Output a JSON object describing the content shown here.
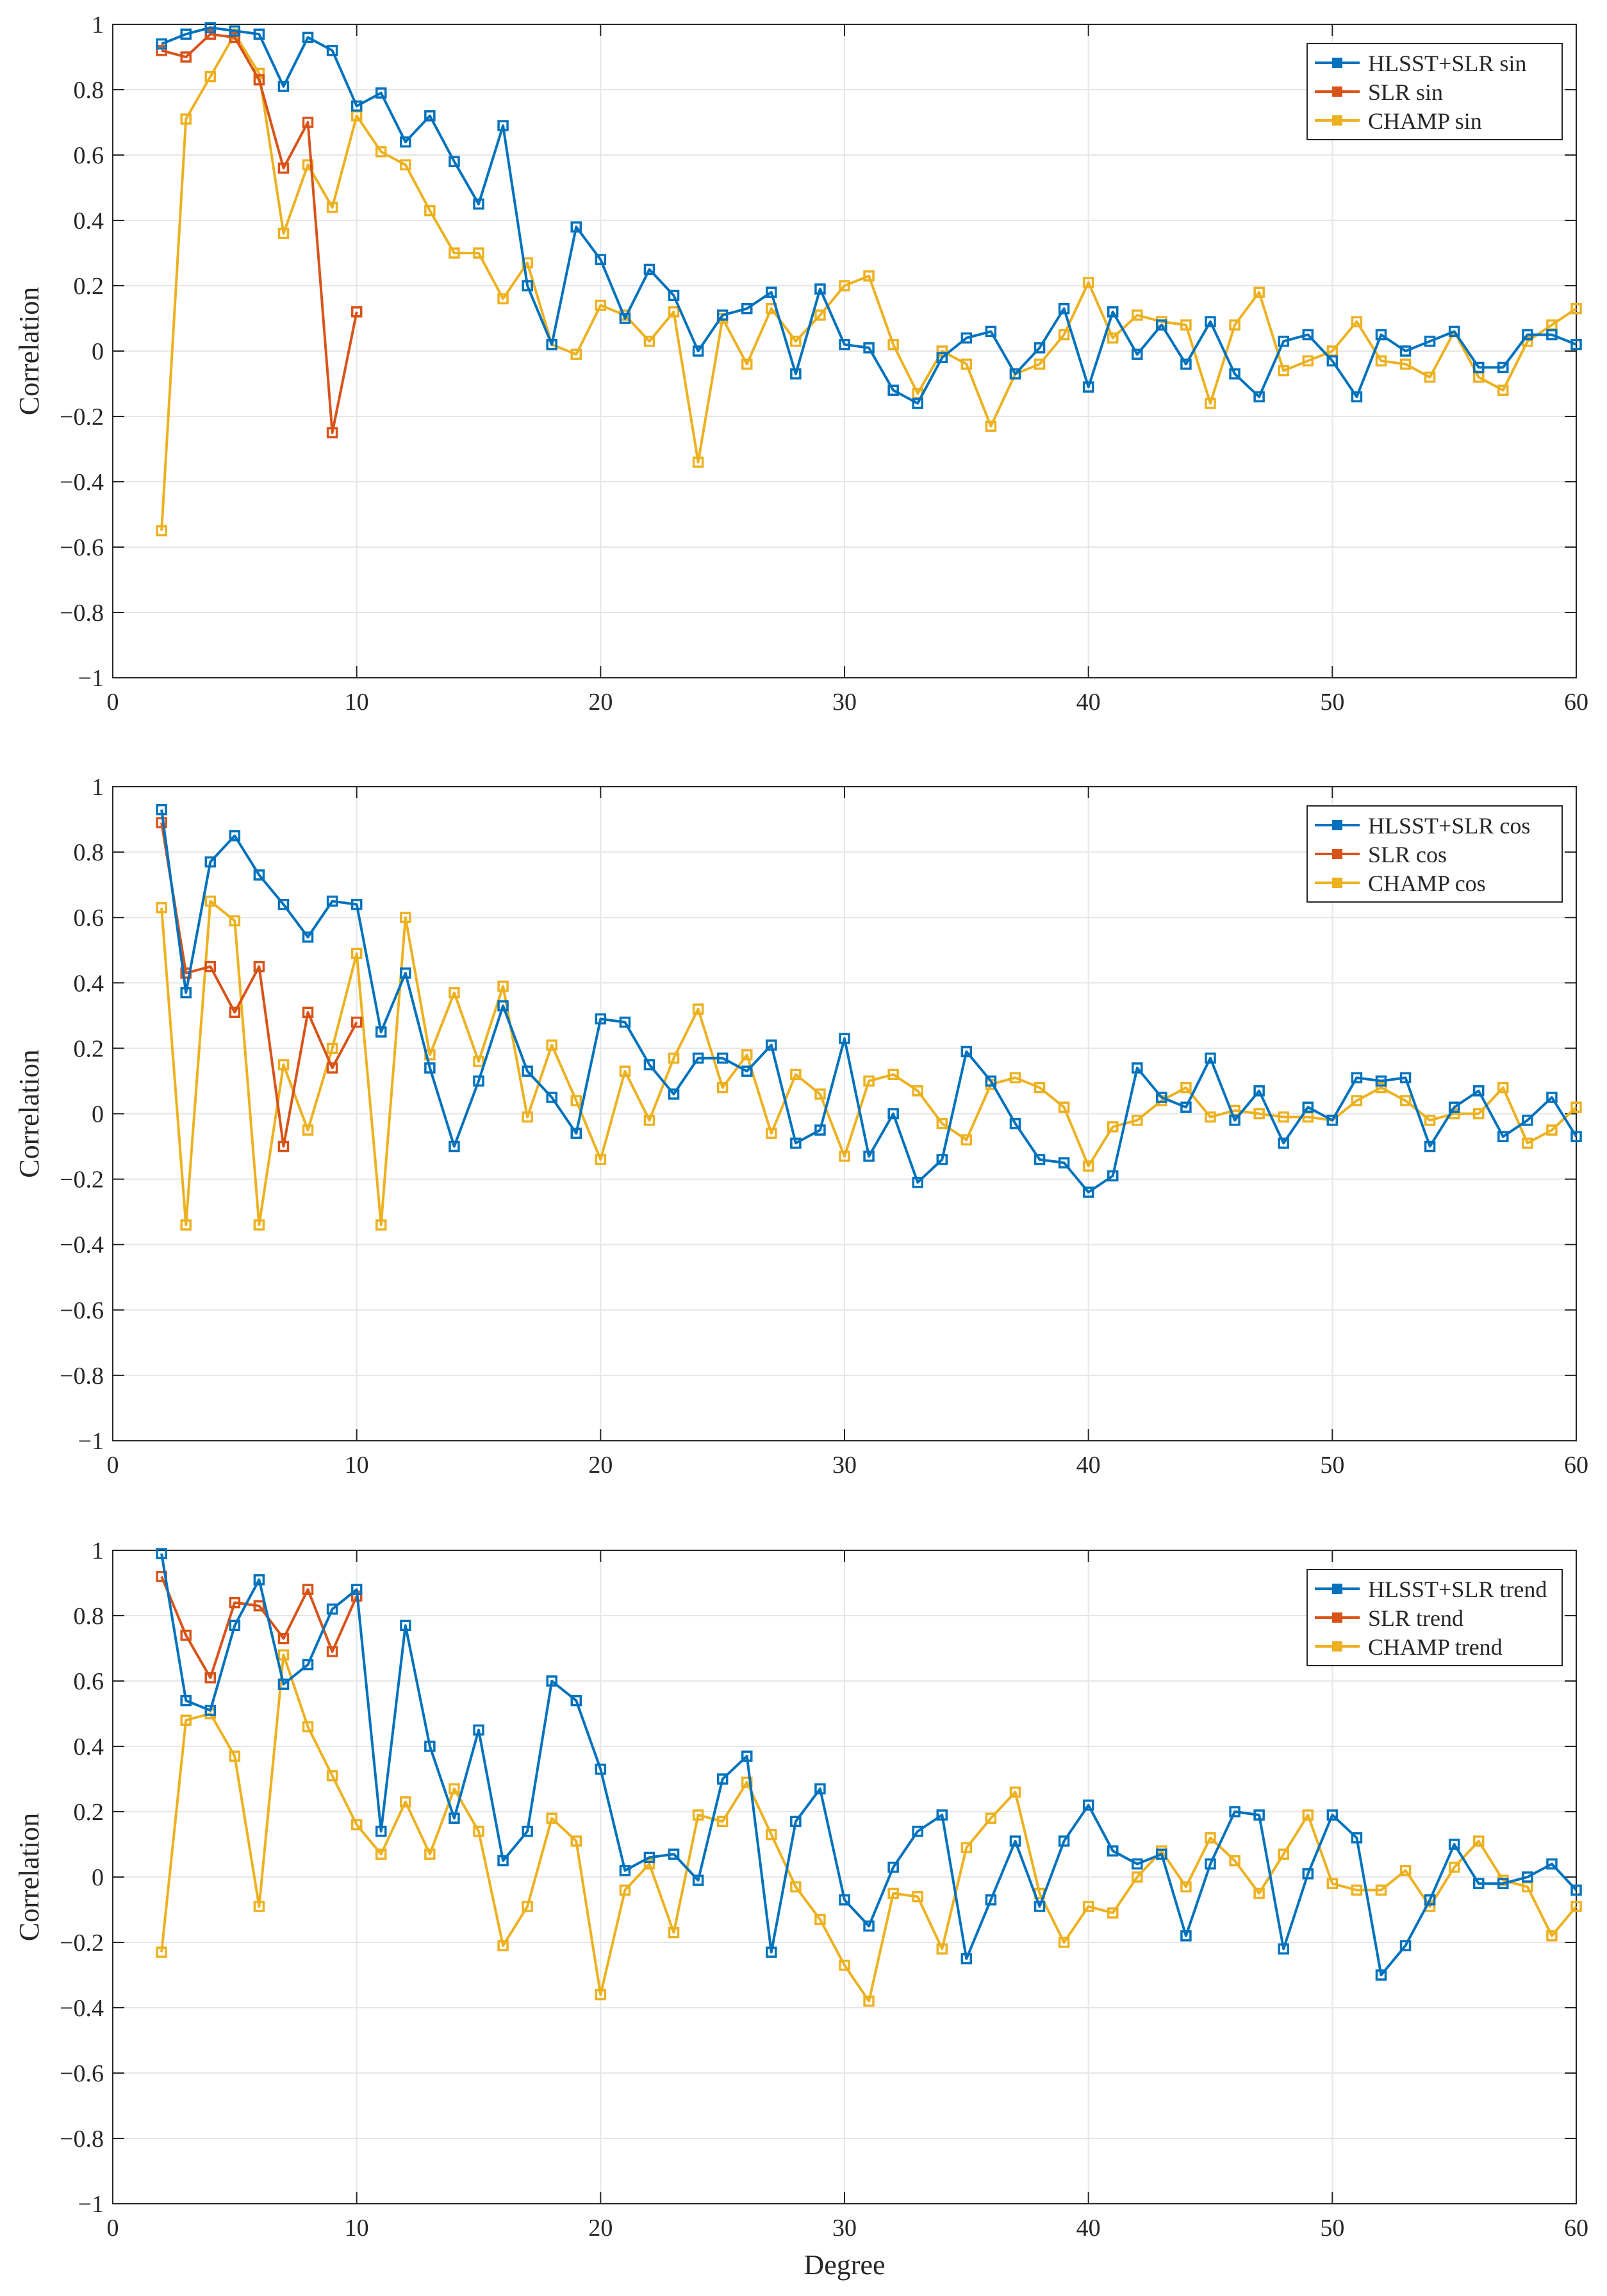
{
  "chart_data": [
    {
      "type": "line",
      "title": "",
      "xlabel": "",
      "ylabel": "Correlation",
      "xlim": [
        0,
        60
      ],
      "ylim": [
        -1,
        1
      ],
      "xticks": [
        0,
        10,
        20,
        30,
        40,
        50,
        60
      ],
      "yticks": [
        1,
        0.8,
        0.6,
        0.4,
        0.2,
        0,
        -0.2,
        -0.4,
        -0.6,
        -0.8,
        -1
      ],
      "ytick_labels": [
        "1",
        "0.8",
        "0.6",
        "0.4",
        "0.2",
        "0",
        "−0.2",
        "−0.4",
        "−0.6",
        "−0.8",
        "−1"
      ],
      "grid": true,
      "legend_position": "top-right",
      "series": [
        {
          "name": "HLSST+SLR sin",
          "color": "#0072BD",
          "x_start": 2,
          "values": [
            0.94,
            0.97,
            0.99,
            0.98,
            0.97,
            0.81,
            0.96,
            0.92,
            0.75,
            0.79,
            0.64,
            0.72,
            0.58,
            0.45,
            0.69,
            0.2,
            0.02,
            0.38,
            0.28,
            0.1,
            0.25,
            0.17,
            0.0,
            0.11,
            0.13,
            0.18,
            -0.07,
            0.19,
            0.02,
            0.01,
            -0.12,
            -0.16,
            -0.02,
            0.04,
            0.06,
            -0.07,
            0.01,
            0.13,
            -0.11,
            0.12,
            -0.01,
            0.08,
            -0.04,
            0.09,
            -0.07,
            -0.14,
            0.03,
            0.05,
            -0.03,
            -0.14,
            0.05,
            0.0,
            0.03,
            0.06,
            -0.05,
            -0.05,
            0.05,
            0.05,
            0.02
          ]
        },
        {
          "name": "SLR sin",
          "color": "#D95319",
          "x_start": 2,
          "values": [
            0.92,
            0.9,
            0.97,
            0.96,
            0.83,
            0.56,
            0.7,
            -0.25,
            0.12
          ]
        },
        {
          "name": "CHAMP sin",
          "color": "#EDB120",
          "x_start": 2,
          "values": [
            -0.55,
            0.71,
            0.84,
            0.97,
            0.85,
            0.36,
            0.57,
            0.44,
            0.72,
            0.61,
            0.57,
            0.43,
            0.3,
            0.3,
            0.16,
            0.27,
            0.02,
            -0.01,
            0.14,
            0.11,
            0.03,
            0.12,
            -0.34,
            0.1,
            -0.04,
            0.13,
            0.03,
            0.11,
            0.2,
            0.23,
            0.02,
            -0.13,
            0.0,
            -0.04,
            -0.23,
            -0.07,
            -0.04,
            0.05,
            0.21,
            0.04,
            0.11,
            0.09,
            0.08,
            -0.16,
            0.08,
            0.18,
            -0.06,
            -0.03,
            0.0,
            0.09,
            -0.03,
            -0.04,
            -0.08,
            0.06,
            -0.08,
            -0.12,
            0.03,
            0.08,
            0.13
          ]
        }
      ]
    },
    {
      "type": "line",
      "title": "",
      "xlabel": "",
      "ylabel": "Correlation",
      "xlim": [
        0,
        60
      ],
      "ylim": [
        -1,
        1
      ],
      "xticks": [
        0,
        10,
        20,
        30,
        40,
        50,
        60
      ],
      "yticks": [
        1,
        0.8,
        0.6,
        0.4,
        0.2,
        0,
        -0.2,
        -0.4,
        -0.6,
        -0.8,
        -1
      ],
      "ytick_labels": [
        "1",
        "0.8",
        "0.6",
        "0.4",
        "0.2",
        "0",
        "−0.2",
        "−0.4",
        "−0.6",
        "−0.8",
        "−1"
      ],
      "grid": true,
      "legend_position": "top-right",
      "series": [
        {
          "name": "HLSST+SLR cos",
          "color": "#0072BD",
          "x_start": 2,
          "values": [
            0.93,
            0.37,
            0.77,
            0.85,
            0.73,
            0.64,
            0.54,
            0.65,
            0.64,
            0.25,
            0.43,
            0.14,
            -0.1,
            0.1,
            0.33,
            0.13,
            0.05,
            -0.06,
            0.29,
            0.28,
            0.15,
            0.06,
            0.17,
            0.17,
            0.13,
            0.21,
            -0.09,
            -0.05,
            0.23,
            -0.13,
            0.0,
            -0.21,
            -0.14,
            0.19,
            0.1,
            -0.03,
            -0.14,
            -0.15,
            -0.24,
            -0.19,
            0.14,
            0.05,
            0.02,
            0.17,
            -0.02,
            0.07,
            -0.09,
            0.02,
            -0.02,
            0.11,
            0.1,
            0.11,
            -0.1,
            0.02,
            0.07,
            -0.07,
            -0.02,
            0.05,
            -0.07
          ]
        },
        {
          "name": "SLR cos",
          "color": "#D95319",
          "x_start": 2,
          "values": [
            0.89,
            0.43,
            0.45,
            0.31,
            0.45,
            -0.1,
            0.31,
            0.14,
            0.28
          ]
        },
        {
          "name": "CHAMP cos",
          "color": "#EDB120",
          "x_start": 2,
          "values": [
            0.63,
            -0.34,
            0.65,
            0.59,
            -0.34,
            0.15,
            -0.05,
            0.2,
            0.49,
            -0.34,
            0.6,
            0.18,
            0.37,
            0.16,
            0.39,
            -0.01,
            0.21,
            0.04,
            -0.14,
            0.13,
            -0.02,
            0.17,
            0.32,
            0.08,
            0.18,
            -0.06,
            0.12,
            0.06,
            -0.13,
            0.1,
            0.12,
            0.07,
            -0.03,
            -0.08,
            0.09,
            0.11,
            0.08,
            0.02,
            -0.16,
            -0.04,
            -0.02,
            0.04,
            0.08,
            -0.01,
            0.01,
            0.0,
            -0.01,
            -0.01,
            -0.02,
            0.04,
            0.08,
            0.04,
            -0.02,
            0.0,
            0.0,
            0.08,
            -0.09,
            -0.05,
            0.02
          ]
        }
      ]
    },
    {
      "type": "line",
      "title": "",
      "xlabel": "Degree",
      "ylabel": "Correlation",
      "xlim": [
        0,
        60
      ],
      "ylim": [
        -1,
        1
      ],
      "xticks": [
        0,
        10,
        20,
        30,
        40,
        50,
        60
      ],
      "yticks": [
        1,
        0.8,
        0.6,
        0.4,
        0.2,
        0,
        -0.2,
        -0.4,
        -0.6,
        -0.8,
        -1
      ],
      "ytick_labels": [
        "1",
        "0.8",
        "0.6",
        "0.4",
        "0.2",
        "0",
        "−0.2",
        "−0.4",
        "−0.6",
        "−0.8",
        "−1"
      ],
      "grid": true,
      "legend_position": "top-right",
      "series": [
        {
          "name": "HLSST+SLR trend",
          "color": "#0072BD",
          "x_start": 2,
          "values": [
            0.99,
            0.54,
            0.51,
            0.77,
            0.91,
            0.59,
            0.65,
            0.82,
            0.88,
            0.14,
            0.77,
            0.4,
            0.18,
            0.45,
            0.05,
            0.14,
            0.6,
            0.54,
            0.33,
            0.02,
            0.06,
            0.07,
            -0.01,
            0.3,
            0.37,
            -0.23,
            0.17,
            0.27,
            -0.07,
            -0.15,
            0.03,
            0.14,
            0.19,
            -0.25,
            -0.07,
            0.11,
            -0.09,
            0.11,
            0.22,
            0.08,
            0.04,
            0.07,
            -0.18,
            0.04,
            0.2,
            0.19,
            -0.22,
            0.01,
            0.19,
            0.12,
            -0.3,
            -0.21,
            -0.07,
            0.1,
            -0.02,
            -0.02,
            0.0,
            0.04,
            -0.04
          ]
        },
        {
          "name": "SLR trend",
          "color": "#D95319",
          "x_start": 2,
          "values": [
            0.92,
            0.74,
            0.61,
            0.84,
            0.83,
            0.73,
            0.88,
            0.69,
            0.86
          ]
        },
        {
          "name": "CHAMP trend",
          "color": "#EDB120",
          "x_start": 2,
          "values": [
            -0.23,
            0.48,
            0.5,
            0.37,
            -0.09,
            0.68,
            0.46,
            0.31,
            0.16,
            0.07,
            0.23,
            0.07,
            0.27,
            0.14,
            -0.21,
            -0.09,
            0.18,
            0.11,
            -0.36,
            -0.04,
            0.04,
            -0.17,
            0.19,
            0.17,
            0.29,
            0.13,
            -0.03,
            -0.13,
            -0.27,
            -0.38,
            -0.05,
            -0.06,
            -0.22,
            0.09,
            0.18,
            0.26,
            -0.05,
            -0.2,
            -0.09,
            -0.11,
            0.0,
            0.08,
            -0.03,
            0.12,
            0.05,
            -0.05,
            0.07,
            0.19,
            -0.02,
            -0.04,
            -0.04,
            0.02,
            -0.09,
            0.03,
            0.11,
            -0.01,
            -0.03,
            -0.18,
            -0.09
          ]
        }
      ]
    }
  ]
}
